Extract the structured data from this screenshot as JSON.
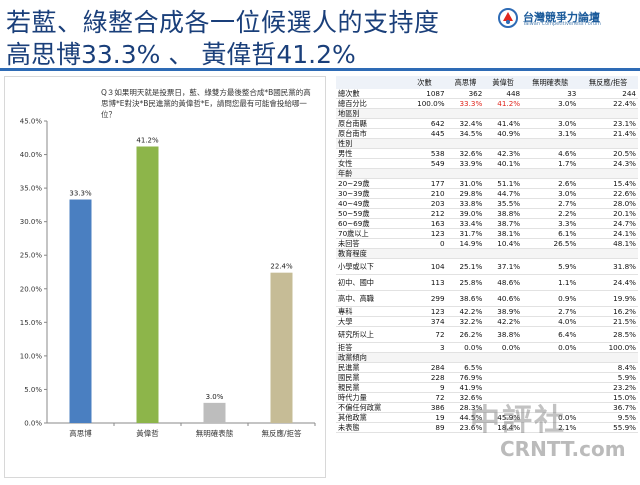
{
  "header": {
    "title_line1": "若藍、綠整合成各一位候選人的支持度",
    "title_line2": "高思博33.3% 、 黃偉哲41.2%",
    "logo_text": "台灣競爭力論壇",
    "logo_sub": "Taiwan Competitiveness Forum"
  },
  "question": "Q３如果明天就是投票日，藍、綠雙方最後整合成*B國民黨的高思博*E對決*B民進黨的黃偉哲*E，請問您最有可能會投給哪一位？",
  "chart_data": {
    "type": "bar",
    "categories": [
      "高思博",
      "黃偉哲",
      "無明確表態",
      "無反應/拒答"
    ],
    "values": [
      33.3,
      41.2,
      3.0,
      22.4
    ],
    "value_labels": [
      "33.3%",
      "41.2%",
      "3.0%",
      "22.4%"
    ],
    "colors": [
      "#4a7fc1",
      "#8db54a",
      "#bdbdbd",
      "#c6bc96"
    ],
    "ylim": [
      0,
      45
    ],
    "yticks": [
      "0.0%",
      "5.0%",
      "10.0%",
      "15.0%",
      "20.0%",
      "25.0%",
      "30.0%",
      "35.0%",
      "40.0%",
      "45.0%"
    ],
    "grid": false
  },
  "table": {
    "headers": [
      "",
      "次數",
      "高思博",
      "黃偉哲",
      "無明確表態",
      "無反應/拒答"
    ],
    "rows": [
      {
        "kind": "row",
        "cells": [
          "總次數",
          "1087",
          "362",
          "448",
          "33",
          "244"
        ]
      },
      {
        "kind": "row",
        "cells": [
          "總百分比",
          "100.0%",
          "33.3%",
          "41.2%",
          "3.0%",
          "22.4%"
        ],
        "red": [
          2,
          3
        ]
      },
      {
        "kind": "grp",
        "cells": [
          "地區別",
          "",
          "",
          "",
          "",
          ""
        ]
      },
      {
        "kind": "row",
        "cells": [
          "原台南縣",
          "642",
          "32.4%",
          "41.4%",
          "3.0%",
          "23.1%"
        ]
      },
      {
        "kind": "row",
        "cells": [
          "原台南市",
          "445",
          "34.5%",
          "40.9%",
          "3.1%",
          "21.4%"
        ]
      },
      {
        "kind": "grp",
        "cells": [
          "性別",
          "",
          "",
          "",
          "",
          ""
        ]
      },
      {
        "kind": "row",
        "cells": [
          "男性",
          "538",
          "32.6%",
          "42.3%",
          "4.6%",
          "20.5%"
        ]
      },
      {
        "kind": "row",
        "cells": [
          "女性",
          "549",
          "33.9%",
          "40.1%",
          "1.7%",
          "24.3%"
        ]
      },
      {
        "kind": "grp",
        "cells": [
          "年齡",
          "",
          "",
          "",
          "",
          ""
        ]
      },
      {
        "kind": "row",
        "cells": [
          "20~29歲",
          "177",
          "31.0%",
          "51.1%",
          "2.6%",
          "15.4%"
        ]
      },
      {
        "kind": "row",
        "cells": [
          "30~39歲",
          "210",
          "29.8%",
          "44.7%",
          "3.0%",
          "22.6%"
        ]
      },
      {
        "kind": "row",
        "cells": [
          "40~49歲",
          "203",
          "33.8%",
          "35.5%",
          "2.7%",
          "28.0%"
        ]
      },
      {
        "kind": "row",
        "cells": [
          "50~59歲",
          "212",
          "39.0%",
          "38.8%",
          "2.2%",
          "20.1%"
        ]
      },
      {
        "kind": "row",
        "cells": [
          "60~69歲",
          "163",
          "33.4%",
          "38.7%",
          "3.3%",
          "24.7%"
        ]
      },
      {
        "kind": "row",
        "cells": [
          "70歲以上",
          "123",
          "31.7%",
          "38.1%",
          "6.1%",
          "24.1%"
        ]
      },
      {
        "kind": "row",
        "cells": [
          "未回答",
          "0",
          "14.9%",
          "10.4%",
          "26.5%",
          "48.1%"
        ]
      },
      {
        "kind": "grp",
        "cells": [
          "教育程度",
          "",
          "",
          "",
          "",
          ""
        ]
      },
      {
        "kind": "tall",
        "cells": [
          "小學或以下",
          "104",
          "25.1%",
          "37.1%",
          "5.9%",
          "31.8%"
        ]
      },
      {
        "kind": "tall",
        "cells": [
          "初中、國中",
          "113",
          "25.8%",
          "48.6%",
          "1.1%",
          "24.4%"
        ]
      },
      {
        "kind": "tall",
        "cells": [
          "高中、高職",
          "299",
          "38.6%",
          "40.6%",
          "0.9%",
          "19.9%"
        ]
      },
      {
        "kind": "row",
        "cells": [
          "專科",
          "123",
          "42.2%",
          "38.9%",
          "2.7%",
          "16.2%"
        ]
      },
      {
        "kind": "row",
        "cells": [
          "大學",
          "374",
          "32.2%",
          "42.2%",
          "4.0%",
          "21.5%"
        ]
      },
      {
        "kind": "tall",
        "cells": [
          "研究所以上",
          "72",
          "26.2%",
          "38.8%",
          "6.4%",
          "28.5%"
        ]
      },
      {
        "kind": "row",
        "cells": [
          "拒答",
          "3",
          "0.0%",
          "0.0%",
          "0.0%",
          "100.0%"
        ]
      },
      {
        "kind": "grp",
        "cells": [
          "政黨傾向",
          "",
          "",
          "",
          "",
          ""
        ]
      },
      {
        "kind": "row",
        "cells": [
          "民進黨",
          "284",
          "6.5%",
          "",
          "",
          "8.4%"
        ]
      },
      {
        "kind": "row",
        "cells": [
          "國民黨",
          "228",
          "76.9%",
          "",
          "",
          "5.9%"
        ]
      },
      {
        "kind": "row",
        "cells": [
          "親民黨",
          "9",
          "41.9%",
          "",
          "",
          "23.2%"
        ]
      },
      {
        "kind": "row",
        "cells": [
          "時代力量",
          "72",
          "32.6%",
          "",
          "",
          "15.0%"
        ]
      },
      {
        "kind": "row",
        "cells": [
          "不偏任何政黨",
          "386",
          "28.3%",
          "",
          "",
          "36.7%"
        ]
      },
      {
        "kind": "row",
        "cells": [
          "其他政黨",
          "19",
          "44.5%",
          "45.9%",
          "0.0%",
          "9.5%"
        ]
      },
      {
        "kind": "row",
        "cells": [
          "未表態",
          "89",
          "23.6%",
          "18.4%",
          "2.1%",
          "55.9%"
        ]
      }
    ]
  },
  "watermark": {
    "line1": "中評社",
    "line2": "CRNTT.com"
  }
}
